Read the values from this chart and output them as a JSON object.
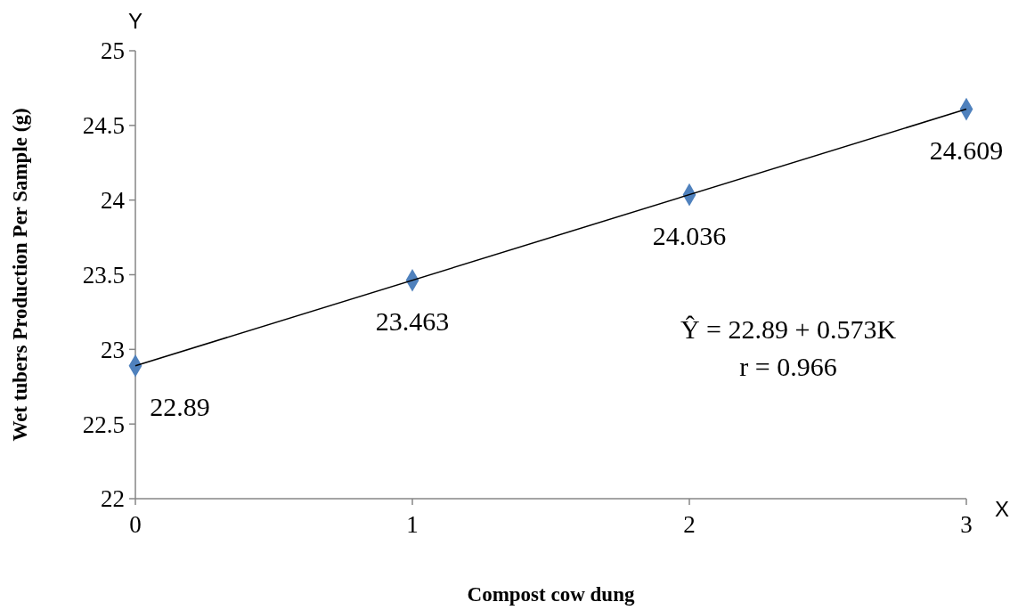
{
  "chart_data": {
    "type": "scatter",
    "xlabel": "Compost cow dung",
    "ylabel": "Wet tubers Production Per Sample (g)",
    "x": [
      0,
      1,
      2,
      3
    ],
    "xlim": [
      0,
      3
    ],
    "xticks": [
      0,
      1,
      2,
      3
    ],
    "ylim": [
      22,
      25
    ],
    "yticks": [
      22,
      22.5,
      23,
      23.5,
      24,
      24.5,
      25
    ],
    "series": [
      {
        "color": "#4f81bd",
        "values": [
          22.89,
          23.463,
          24.036,
          24.609
        ],
        "value_labels": [
          "22.89",
          "23.463",
          "24.036",
          "24.609"
        ],
        "marker": "diamond"
      },
      {
        "type": "line",
        "color": "#000000",
        "x": [
          0,
          3
        ],
        "values": [
          22.89,
          24.609
        ]
      }
    ],
    "grid": false,
    "annotations": [
      "Y",
      "X",
      "Ŷ = 22.89 + 0.573K",
      "r = 0.966"
    ]
  }
}
